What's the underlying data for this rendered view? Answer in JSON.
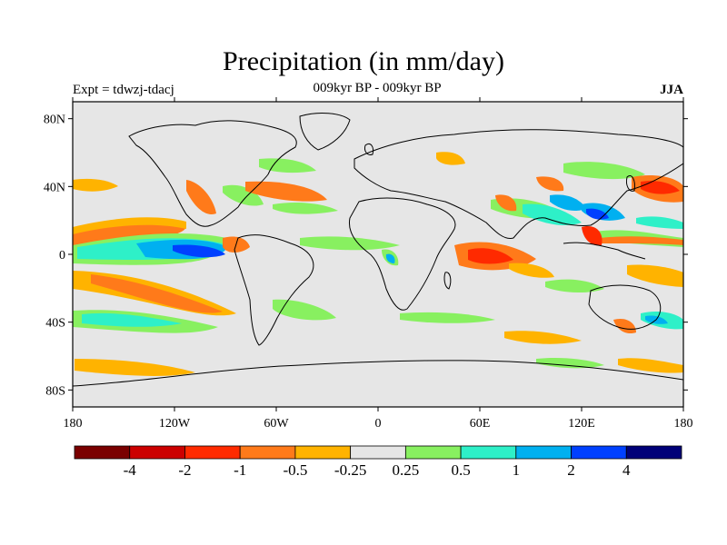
{
  "header": {
    "title": "Precipitation (in mm/day)",
    "left": "Expt = tdwzj-tdacj",
    "center": "009kyr BP - 009kyr BP",
    "right": "JJA"
  },
  "axes": {
    "lat_ticks": [
      "80N",
      "40N",
      "0",
      "40S",
      "80S"
    ],
    "lon_ticks": [
      "180",
      "120W",
      "60W",
      "0",
      "60E",
      "120E",
      "180"
    ]
  },
  "colorbar": {
    "colors": [
      "#7a0000",
      "#cc0000",
      "#ff2a00",
      "#ff7a1a",
      "#ffb300",
      "#e6e6e6",
      "#88f060",
      "#2ef0c8",
      "#00b0f0",
      "#0040ff",
      "#000078"
    ],
    "labels": [
      "-4",
      "-2",
      "-1",
      "-0.5",
      "-0.25",
      "0.25",
      "0.5",
      "1",
      "2",
      "4"
    ]
  },
  "colors": {
    "background": "#e6e6e6",
    "coast": "#000000"
  }
}
